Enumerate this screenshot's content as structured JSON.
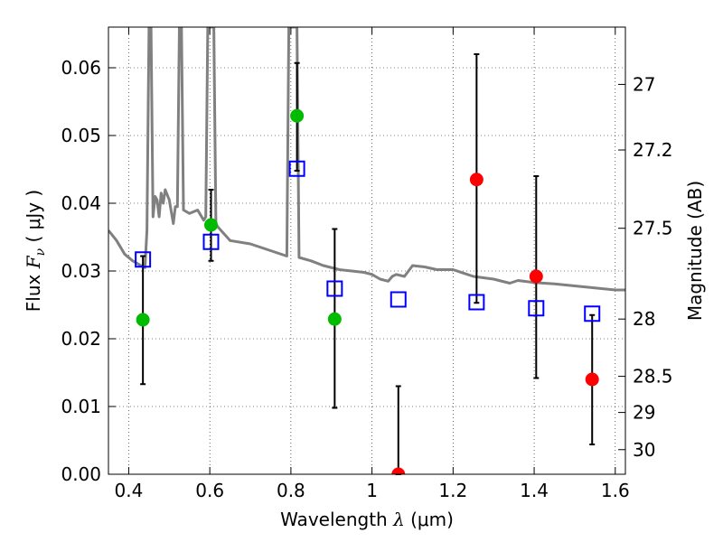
{
  "chart_data": {
    "type": "scatter",
    "xlabel": "Wavelength",
    "xlabel_symbol": "λ",
    "xlabel_unit": "(μm)",
    "ylabel": "Flux",
    "ylabel_symbol": "F",
    "ylabel_subscript": "ν",
    "ylabel_unit": "( μJy )",
    "y2label": "Magnitude (AB)",
    "xlim": [
      0.35,
      1.625
    ],
    "ylim": [
      0.0,
      0.066
    ],
    "grid": true,
    "x_ticks": [
      {
        "value": 0.4,
        "label": "0.4"
      },
      {
        "value": 0.6,
        "label": "0.6"
      },
      {
        "value": 0.8,
        "label": "0.8"
      },
      {
        "value": 1.0,
        "label": "1"
      },
      {
        "value": 1.2,
        "label": "1.2"
      },
      {
        "value": 1.4,
        "label": "1.4"
      },
      {
        "value": 1.6,
        "label": "1.6"
      }
    ],
    "y_ticks": [
      {
        "value": 0.0,
        "label": "0.00"
      },
      {
        "value": 0.01,
        "label": "0.01"
      },
      {
        "value": 0.02,
        "label": "0.02"
      },
      {
        "value": 0.03,
        "label": "0.03"
      },
      {
        "value": 0.04,
        "label": "0.04"
      },
      {
        "value": 0.05,
        "label": "0.05"
      },
      {
        "value": 0.06,
        "label": "0.06"
      }
    ],
    "y2_ticks": [
      {
        "value": 27.0,
        "label": "27"
      },
      {
        "value": 27.2,
        "label": "27.2"
      },
      {
        "value": 27.5,
        "label": "27.5"
      },
      {
        "value": 28.0,
        "label": "28"
      },
      {
        "value": 28.5,
        "label": "28.5"
      },
      {
        "value": 29.0,
        "label": "29"
      },
      {
        "value": 30.0,
        "label": "30"
      }
    ],
    "model_sed": {
      "color": "#808080",
      "points": [
        [
          0.35,
          0.036
        ],
        [
          0.37,
          0.0345
        ],
        [
          0.39,
          0.0325
        ],
        [
          0.41,
          0.0315
        ],
        [
          0.43,
          0.0308
        ],
        [
          0.44,
          0.0305
        ],
        [
          0.445,
          0.036
        ],
        [
          0.45,
          0.066
        ],
        [
          0.455,
          0.066
        ],
        [
          0.46,
          0.038
        ],
        [
          0.465,
          0.041
        ],
        [
          0.47,
          0.0405
        ],
        [
          0.475,
          0.038
        ],
        [
          0.48,
          0.0415
        ],
        [
          0.485,
          0.04
        ],
        [
          0.49,
          0.042
        ],
        [
          0.5,
          0.0405
        ],
        [
          0.51,
          0.037
        ],
        [
          0.515,
          0.0395
        ],
        [
          0.52,
          0.0395
        ],
        [
          0.525,
          0.066
        ],
        [
          0.53,
          0.066
        ],
        [
          0.535,
          0.039
        ],
        [
          0.55,
          0.0385
        ],
        [
          0.57,
          0.039
        ],
        [
          0.585,
          0.0375
        ],
        [
          0.59,
          0.038
        ],
        [
          0.595,
          0.066
        ],
        [
          0.61,
          0.066
        ],
        [
          0.615,
          0.037
        ],
        [
          0.62,
          0.0365
        ],
        [
          0.65,
          0.0345
        ],
        [
          0.7,
          0.034
        ],
        [
          0.75,
          0.033
        ],
        [
          0.79,
          0.0322
        ],
        [
          0.795,
          0.066
        ],
        [
          0.815,
          0.066
        ],
        [
          0.82,
          0.032
        ],
        [
          0.85,
          0.0315
        ],
        [
          0.88,
          0.0308
        ],
        [
          0.92,
          0.0302
        ],
        [
          0.95,
          0.03
        ],
        [
          0.98,
          0.0298
        ],
        [
          1.0,
          0.0295
        ],
        [
          1.02,
          0.0288
        ],
        [
          1.04,
          0.0285
        ],
        [
          1.05,
          0.0292
        ],
        [
          1.06,
          0.0295
        ],
        [
          1.08,
          0.0292
        ],
        [
          1.1,
          0.0308
        ],
        [
          1.13,
          0.0306
        ],
        [
          1.16,
          0.0302
        ],
        [
          1.2,
          0.0302
        ],
        [
          1.25,
          0.0292
        ],
        [
          1.3,
          0.0288
        ],
        [
          1.34,
          0.0282
        ],
        [
          1.36,
          0.0286
        ],
        [
          1.4,
          0.0283
        ],
        [
          1.45,
          0.0281
        ],
        [
          1.5,
          0.0278
        ],
        [
          1.55,
          0.0275
        ],
        [
          1.6,
          0.0272
        ],
        [
          1.625,
          0.0272
        ]
      ]
    },
    "observed_points": [
      {
        "x": 0.435,
        "y": 0.0228,
        "yerr_low": 0.0133,
        "yerr_high": 0.0322,
        "color": "#00bb00"
      },
      {
        "x": 0.603,
        "y": 0.0368,
        "yerr_low": 0.0315,
        "yerr_high": 0.042,
        "color": "#00bb00"
      },
      {
        "x": 0.815,
        "y": 0.0529,
        "yerr_low": 0.0448,
        "yerr_high": 0.0607,
        "color": "#00bb00"
      },
      {
        "x": 0.908,
        "y": 0.0229,
        "yerr_low": 0.0098,
        "yerr_high": 0.0362,
        "color": "#00bb00"
      },
      {
        "x": 1.065,
        "y": 0.0,
        "yerr_low": 0.0,
        "yerr_high": 0.013,
        "color": "#ff0000"
      },
      {
        "x": 1.258,
        "y": 0.0435,
        "yerr_low": 0.0253,
        "yerr_high": 0.062,
        "color": "#ff0000"
      },
      {
        "x": 1.405,
        "y": 0.0292,
        "yerr_low": 0.0142,
        "yerr_high": 0.044,
        "color": "#ff0000"
      },
      {
        "x": 1.543,
        "y": 0.014,
        "yerr_low": 0.0044,
        "yerr_high": 0.0235,
        "color": "#ff0000"
      }
    ],
    "model_bands": {
      "color": "#0000ff",
      "points": [
        {
          "x": 0.435,
          "y": 0.0317
        },
        {
          "x": 0.603,
          "y": 0.0343
        },
        {
          "x": 0.815,
          "y": 0.0451
        },
        {
          "x": 0.908,
          "y": 0.0274
        },
        {
          "x": 1.065,
          "y": 0.0258
        },
        {
          "x": 1.258,
          "y": 0.0254
        },
        {
          "x": 1.405,
          "y": 0.0245
        },
        {
          "x": 1.543,
          "y": 0.0237
        }
      ]
    }
  }
}
